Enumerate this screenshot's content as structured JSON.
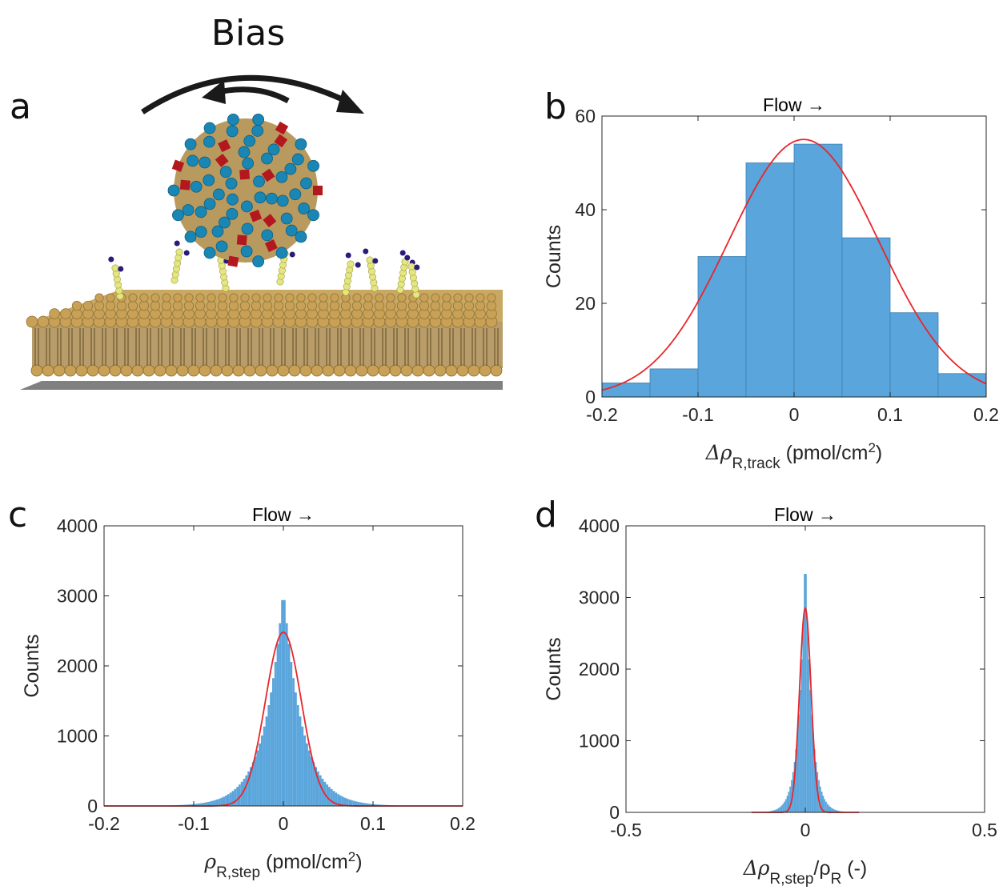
{
  "figure": {
    "bias_label": "Bias",
    "panel_labels": [
      "a",
      "b",
      "c",
      "d"
    ]
  },
  "colors": {
    "bar_fill": "#5aa5db",
    "bar_edge": "#3f7fb0",
    "fit_line": "#e8262b",
    "axis": "#262626",
    "virus_shell": "#1a86b3",
    "virus_spike": "#b3181f",
    "lipid_head": "#c8a056",
    "receptor": "#e6e680",
    "receptor_tip": "#2a1a7a",
    "substrate": "#808080"
  },
  "chart_data": [
    {
      "panel": "b",
      "type": "bar",
      "title": "Flow →",
      "xlabel": "Δρ",
      "xlabel_sub": "R,track",
      "xlabel_unit": " (pmol/cm",
      "xlabel_sup": "2",
      "xlabel_end": ")",
      "ylabel": "Counts",
      "xlim": [
        -0.2,
        0.2
      ],
      "ylim": [
        0,
        60
      ],
      "xticks": [
        -0.2,
        -0.1,
        0,
        0.1,
        0.2
      ],
      "xtick_labels": [
        "-0.2",
        "-0.1",
        "0",
        "0.1",
        "0.2"
      ],
      "yticks": [
        0,
        20,
        40,
        60
      ],
      "ytick_labels": [
        "0",
        "20",
        "40",
        "60"
      ],
      "bin_edges": [
        -0.2,
        -0.15,
        -0.1,
        -0.05,
        0,
        0.05,
        0.1,
        0.15,
        0.2
      ],
      "values": [
        3,
        6,
        30,
        50,
        54,
        34,
        18,
        5
      ],
      "fit": {
        "type": "gaussian",
        "amplitude": 55,
        "mean": 0.01,
        "sigma": 0.078
      }
    },
    {
      "panel": "c",
      "type": "bar",
      "title": "Flow →",
      "xlabel": "ρ",
      "xlabel_sub": "R,step",
      "xlabel_unit": " (pmol/cm",
      "xlabel_sup": "2",
      "xlabel_end": ")",
      "ylabel": "Counts",
      "xlim": [
        -0.2,
        0.2
      ],
      "ylim": [
        0,
        4000
      ],
      "xticks": [
        -0.2,
        -0.1,
        0,
        0.1,
        0.2
      ],
      "xtick_labels": [
        "-0.2",
        "-0.1",
        "0",
        "0.1",
        "0.2"
      ],
      "yticks": [
        0,
        1000,
        2000,
        3000,
        4000
      ],
      "ytick_labels": [
        "0",
        "1000",
        "2000",
        "3000",
        "4000"
      ],
      "histogram": {
        "bin_width": 0.0025,
        "peak": 3120,
        "center": 0.0,
        "laplace_scale": 0.021
      },
      "fit": {
        "type": "gaussian",
        "amplitude": 2480,
        "mean": 0.0,
        "sigma": 0.02
      }
    },
    {
      "panel": "d",
      "type": "bar",
      "title": "Flow →",
      "xlabel": "Δρ",
      "xlabel_sub": "R,step",
      "xlabel_unit": "/ρ",
      "xlabel_sub2": "R",
      "xlabel_end": " (-)",
      "ylabel": "Counts",
      "xlim": [
        -0.5,
        0.5
      ],
      "ylim": [
        0,
        4000
      ],
      "xticks": [
        -0.5,
        0,
        0.5
      ],
      "xtick_labels": [
        "-0.5",
        "0",
        "0.5"
      ],
      "yticks": [
        0,
        1000,
        2000,
        3000,
        4000
      ],
      "ytick_labels": [
        "0",
        "1000",
        "2000",
        "3000",
        "4000"
      ],
      "histogram": {
        "bin_width": 0.004,
        "peak": 3720,
        "center": 0.0,
        "laplace_scale": 0.018
      },
      "fit": {
        "type": "gaussian",
        "amplitude": 2850,
        "mean": 0.0,
        "sigma": 0.016,
        "range": [
          -0.15,
          0.15
        ]
      }
    }
  ]
}
